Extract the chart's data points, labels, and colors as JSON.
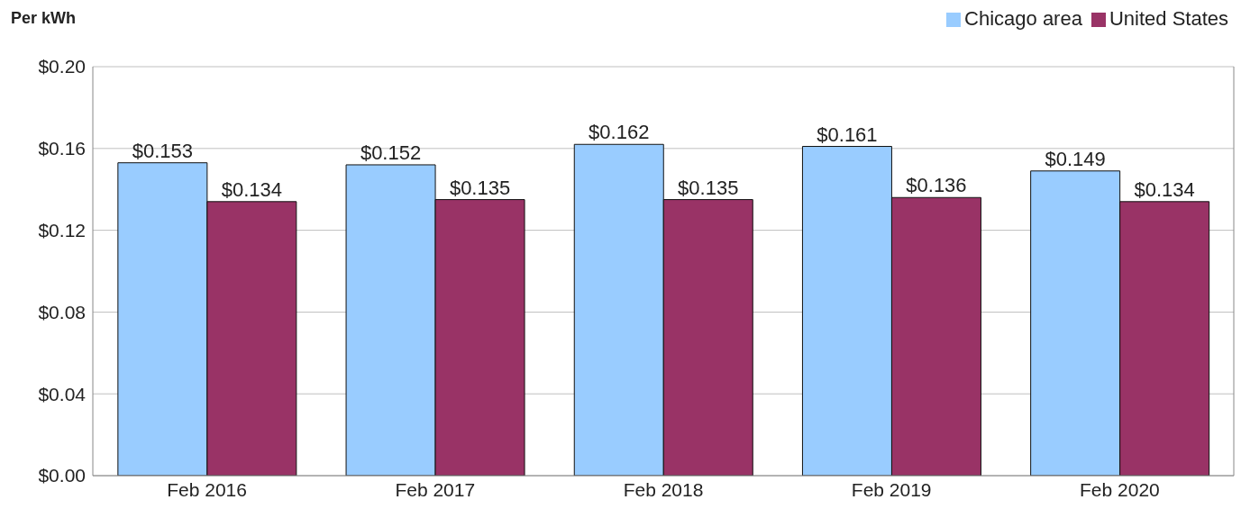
{
  "chart_data": {
    "type": "bar",
    "ylabel": "Per kWh",
    "categories": [
      "Feb 2016",
      "Feb 2017",
      "Feb 2018",
      "Feb 2019",
      "Feb 2020"
    ],
    "series": [
      {
        "name": "Chicago area",
        "color": "#99ccff",
        "values": [
          0.153,
          0.152,
          0.162,
          0.161,
          0.149
        ],
        "value_labels": [
          "$0.153",
          "$0.152",
          "$0.162",
          "$0.161",
          "$0.149"
        ]
      },
      {
        "name": "United States",
        "color": "#993366",
        "values": [
          0.134,
          0.135,
          0.135,
          0.136,
          0.134
        ],
        "value_labels": [
          "$0.134",
          "$0.135",
          "$0.135",
          "$0.136",
          "$0.134"
        ]
      }
    ],
    "ylim": [
      0,
      0.2
    ],
    "yticks": [
      {
        "value": 0,
        "label": "$0.00"
      },
      {
        "value": 0.04,
        "label": "$0.04"
      },
      {
        "value": 0.08,
        "label": "$0.08"
      },
      {
        "value": 0.12,
        "label": "$0.12"
      },
      {
        "value": 0.16,
        "label": "$0.16"
      },
      {
        "value": 0.2,
        "label": "$0.20"
      }
    ],
    "grid": "y",
    "legend": "top right"
  }
}
